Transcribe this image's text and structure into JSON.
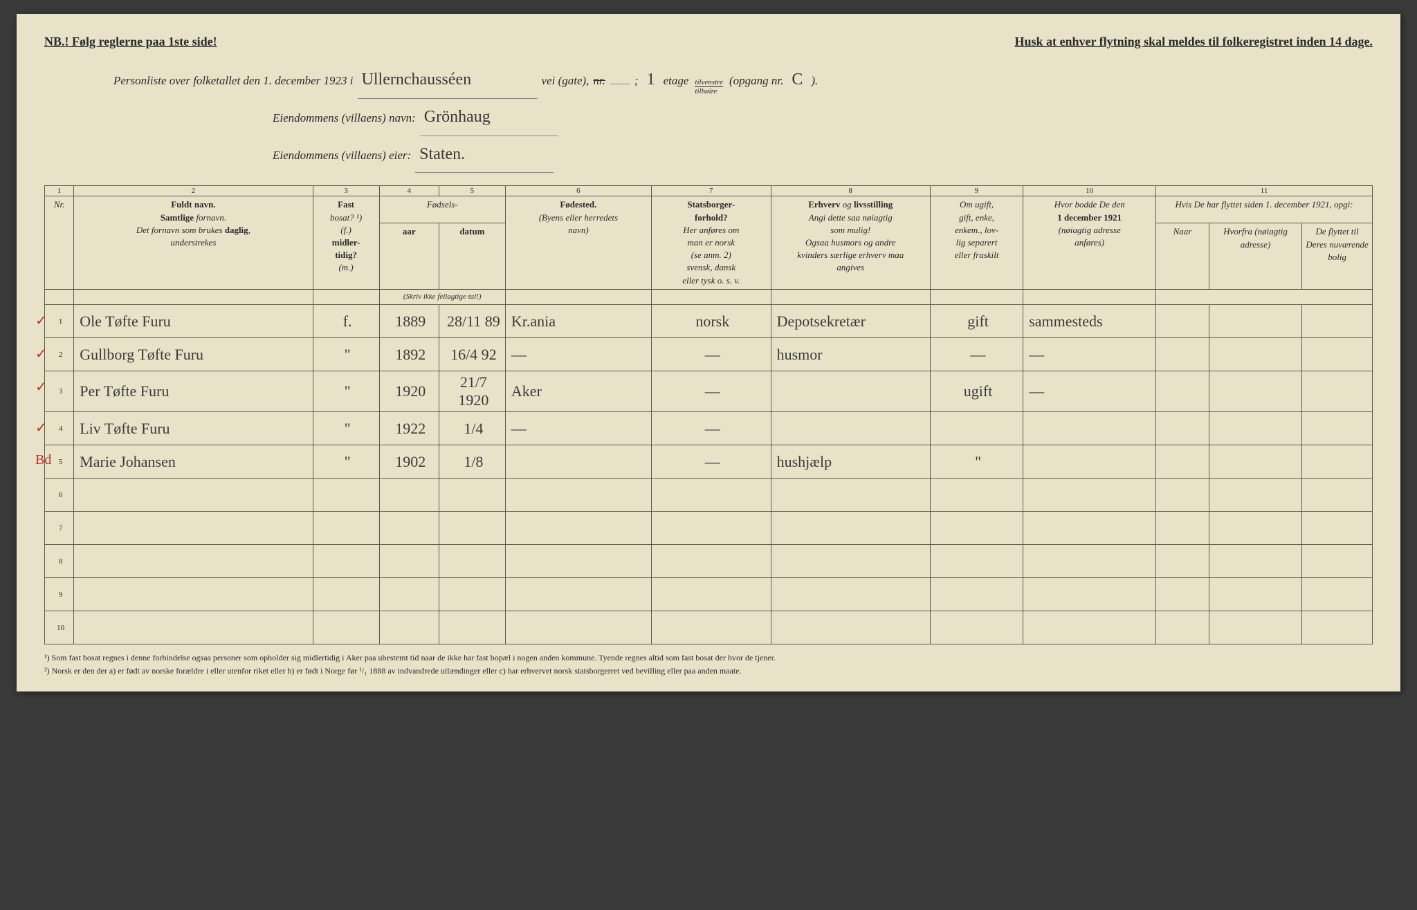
{
  "top": {
    "left": "NB.! Følg reglerne paa 1ste side!",
    "right": "Husk at enhver flytning skal meldes til folkeregistret inden 14 dage."
  },
  "header": {
    "line1_a": "Personliste over folketallet den 1. december 1923 i",
    "street": "Ullernchausséen",
    "line1_b": "vei (gate),",
    "nr_label": "nr.",
    "nr_val": "",
    "etage_val": "1",
    "etage_label": "etage",
    "frac_top": "tilvenstre",
    "frac_bot": "tilhøire",
    "opgang": "(opgang nr.",
    "opgang_val": "C",
    "close": ").",
    "line2_a": "Eiendommens (villaens) navn:",
    "villa": "Grönhaug",
    "line3_a": "Eiendommens (villaens) eier:",
    "eier": "Staten."
  },
  "colnums": [
    "1",
    "2",
    "3",
    "4",
    "5",
    "6",
    "7",
    "8",
    "9",
    "10",
    "11"
  ],
  "heads": {
    "nr": "Nr.",
    "c2": "Fuldt navn.\nSamtlige fornavn.\nDet fornavn som brukes daglig, understrekes",
    "c3": "Fast bosat? ¹) (f.) midler-tidig? (m.)",
    "c45": "Fødsels-",
    "c4": "aar",
    "c5": "datum",
    "c45b": "(Skriv ikke feilagtige tal!)",
    "c6": "Fødested.\n(Byens eller herredets navn)",
    "c7": "Statsborger-forhold?\nHer anføres om man er norsk (se anm. 2) svensk, dansk eller tysk o. s. v.",
    "c8": "Erhverv og livsstilling\nAngi dette saa nøiagtig som mulig!\nOgsaa husmors og andre kvinders særlige erhverv maa angives",
    "c9": "Om ugift, gift, enke, enkem., lov-lig separert eller fraskilt",
    "c10": "Hvor bodde De den 1 december 1921 (nøiagtig adresse anføres)",
    "c11": "Hvis De har flyttet siden 1. december 1921, opgi:",
    "c11a": "Naar",
    "c11b": "Hvorfra (nøiagtig adresse)",
    "c11c": "De flyttet til Deres nuværende bolig"
  },
  "rows": [
    {
      "tick": "✓",
      "nr": "1",
      "name": "Ole Tøfte Furu",
      "fm": "f.",
      "aar": "1889",
      "dat": "28/11 89",
      "sted": "Kr.ania",
      "stat": "norsk",
      "erh": "Depotsekretær",
      "giv": "gift",
      "bod": "sammesteds",
      "n": "",
      "hf": "",
      "df": ""
    },
    {
      "tick": "✓",
      "nr": "2",
      "name": "Gullborg Tøfte Furu",
      "fm": "\"",
      "aar": "1892",
      "dat": "16/4 92",
      "sted": "—",
      "stat": "—",
      "erh": "husmor",
      "giv": "—",
      "bod": "—",
      "n": "",
      "hf": "",
      "df": ""
    },
    {
      "tick": "✓",
      "nr": "3",
      "name": "Per Tøfte Furu",
      "fm": "\"",
      "aar": "1920",
      "dat": "21/7 1920",
      "sted": "Aker",
      "stat": "—",
      "erh": "",
      "giv": "ugift",
      "bod": "—",
      "n": "",
      "hf": "",
      "df": ""
    },
    {
      "tick": "✓",
      "nr": "4",
      "name": "Liv Tøfte Furu",
      "fm": "\"",
      "aar": "1922",
      "dat": "1/4",
      "sted": "—",
      "stat": "—",
      "erh": "",
      "giv": "",
      "bod": "",
      "n": "",
      "hf": "",
      "df": ""
    },
    {
      "tick": "Bd",
      "nr": "5",
      "name": "Marie Johansen",
      "fm": "\"",
      "aar": "1902",
      "dat": "1/8",
      "sted": "",
      "stat": "—",
      "erh": "hushjælp",
      "giv": "\"",
      "bod": "",
      "n": "",
      "hf": "",
      "df": ""
    },
    {
      "tick": "",
      "nr": "6",
      "name": "",
      "fm": "",
      "aar": "",
      "dat": "",
      "sted": "",
      "stat": "",
      "erh": "",
      "giv": "",
      "bod": "",
      "n": "",
      "hf": "",
      "df": ""
    },
    {
      "tick": "",
      "nr": "7",
      "name": "",
      "fm": "",
      "aar": "",
      "dat": "",
      "sted": "",
      "stat": "",
      "erh": "",
      "giv": "",
      "bod": "",
      "n": "",
      "hf": "",
      "df": ""
    },
    {
      "tick": "",
      "nr": "8",
      "name": "",
      "fm": "",
      "aar": "",
      "dat": "",
      "sted": "",
      "stat": "",
      "erh": "",
      "giv": "",
      "bod": "",
      "n": "",
      "hf": "",
      "df": ""
    },
    {
      "tick": "",
      "nr": "9",
      "name": "",
      "fm": "",
      "aar": "",
      "dat": "",
      "sted": "",
      "stat": "",
      "erh": "",
      "giv": "",
      "bod": "",
      "n": "",
      "hf": "",
      "df": ""
    },
    {
      "tick": "",
      "nr": "10",
      "name": "",
      "fm": "",
      "aar": "",
      "dat": "",
      "sted": "",
      "stat": "",
      "erh": "",
      "giv": "",
      "bod": "",
      "n": "",
      "hf": "",
      "df": ""
    }
  ],
  "footnotes": {
    "f1": "¹) Som fast bosat regnes i denne forbindelse ogsaa personer som opholder sig midlertidig i Aker paa ubestemt tid naar de ikke har fast bopæl i nogen anden kommune. Tyende regnes altid som fast bosat der hvor de tjener.",
    "f2": "²) Norsk er den der a) er født av norske forældre i eller utenfor riket eller b) er født i Norge før ¹/₁ 1888 av indvandrede utlændinger eller c) har erhvervet norsk statsborgerret ved bevilling eller paa anden maate."
  }
}
